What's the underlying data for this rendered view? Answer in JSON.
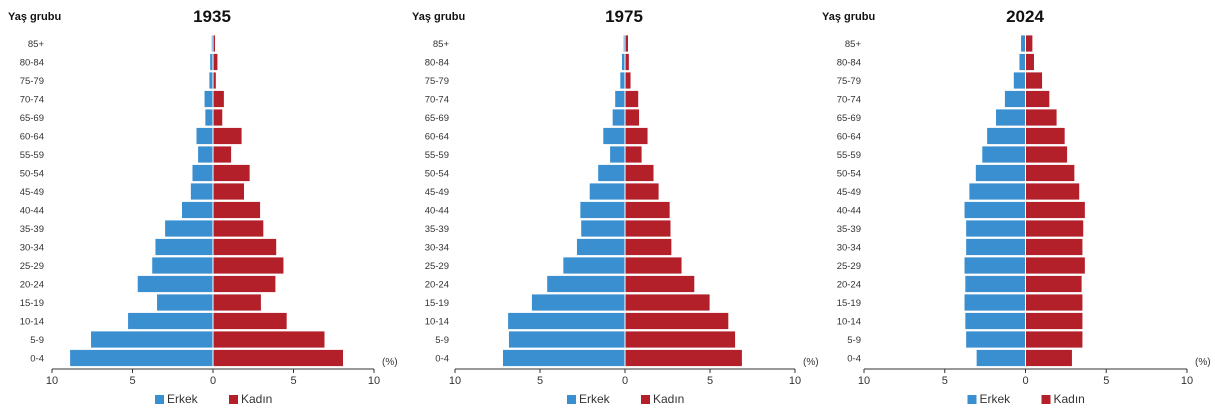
{
  "colors": {
    "male": "#3A8FD0",
    "female": "#B3202A",
    "axis": "#333333"
  },
  "chart_data": [
    {
      "type": "bar",
      "orientation": "horizontal-population-pyramid",
      "title": "1935",
      "ylabel": "Yaş grubu",
      "unit_label": "(%)",
      "xlim": [
        -10,
        10
      ],
      "xticks": [
        "10",
        "5",
        "0",
        "5",
        "10"
      ],
      "legend": [
        "Erkek",
        "Kadın"
      ],
      "legend_position": "bottom-center",
      "categories": [
        "85+",
        "80-84",
        "75-79",
        "70-74",
        "65-69",
        "60-64",
        "55-59",
        "50-54",
        "45-49",
        "40-44",
        "35-39",
        "30-34",
        "25-29",
        "20-24",
        "15-19",
        "10-14",
        "5-9",
        "0-4"
      ],
      "series": [
        {
          "name": "Erkek",
          "values": [
            0.1,
            0.2,
            0.25,
            0.55,
            0.5,
            1.05,
            0.95,
            1.3,
            1.4,
            1.95,
            3.0,
            3.6,
            3.8,
            4.7,
            3.5,
            5.3,
            7.6,
            8.9
          ]
        },
        {
          "name": "Kadın",
          "values": [
            0.15,
            0.3,
            0.2,
            0.7,
            0.6,
            1.8,
            1.15,
            2.3,
            1.95,
            2.95,
            3.15,
            3.95,
            4.4,
            3.9,
            3.0,
            4.6,
            6.95,
            8.1
          ]
        }
      ]
    },
    {
      "type": "bar",
      "orientation": "horizontal-population-pyramid",
      "title": "1975",
      "ylabel": "Yaş grubu",
      "unit_label": "(%)",
      "xlim": [
        -10,
        10
      ],
      "xticks": [
        "10",
        "5",
        "0",
        "5",
        "10"
      ],
      "legend": [
        "Erkek",
        "Kadın"
      ],
      "legend_position": "bottom-center",
      "categories": [
        "85+",
        "80-84",
        "75-79",
        "70-74",
        "65-69",
        "60-64",
        "55-59",
        "50-54",
        "45-49",
        "40-44",
        "35-39",
        "30-34",
        "25-29",
        "20-24",
        "15-19",
        "10-14",
        "5-9",
        "0-4"
      ],
      "series": [
        {
          "name": "Erkek",
          "values": [
            0.1,
            0.2,
            0.3,
            0.6,
            0.75,
            1.3,
            0.9,
            1.6,
            2.1,
            2.65,
            2.6,
            2.85,
            3.65,
            4.6,
            5.5,
            6.9,
            6.85,
            7.2
          ]
        },
        {
          "name": "Kadın",
          "values": [
            0.2,
            0.25,
            0.35,
            0.8,
            0.85,
            1.35,
            1.0,
            1.7,
            2.0,
            2.65,
            2.7,
            2.75,
            3.35,
            4.1,
            5.0,
            6.1,
            6.5,
            6.9
          ]
        }
      ]
    },
    {
      "type": "bar",
      "orientation": "horizontal-population-pyramid",
      "title": "2024",
      "ylabel": "Yaş grubu",
      "unit_label": "(%)",
      "xlim": [
        -10,
        10
      ],
      "xticks": [
        "10",
        "5",
        "0",
        "5",
        "10"
      ],
      "legend": [
        "Erkek",
        "Kadın"
      ],
      "legend_position": "bottom-center",
      "categories": [
        "85+",
        "80-84",
        "75-79",
        "70-74",
        "65-69",
        "60-64",
        "55-59",
        "50-54",
        "45-49",
        "40-44",
        "35-39",
        "30-34",
        "25-29",
        "20-24",
        "15-19",
        "10-14",
        "5-9",
        "0-4"
      ],
      "series": [
        {
          "name": "Erkek",
          "values": [
            0.3,
            0.4,
            0.75,
            1.3,
            1.85,
            2.4,
            2.7,
            3.1,
            3.5,
            3.8,
            3.7,
            3.7,
            3.8,
            3.75,
            3.8,
            3.75,
            3.7,
            3.05
          ]
        },
        {
          "name": "Kadın",
          "values": [
            0.45,
            0.55,
            1.05,
            1.5,
            1.95,
            2.45,
            2.6,
            3.05,
            3.35,
            3.7,
            3.6,
            3.55,
            3.7,
            3.5,
            3.55,
            3.55,
            3.55,
            2.9
          ]
        }
      ]
    }
  ]
}
